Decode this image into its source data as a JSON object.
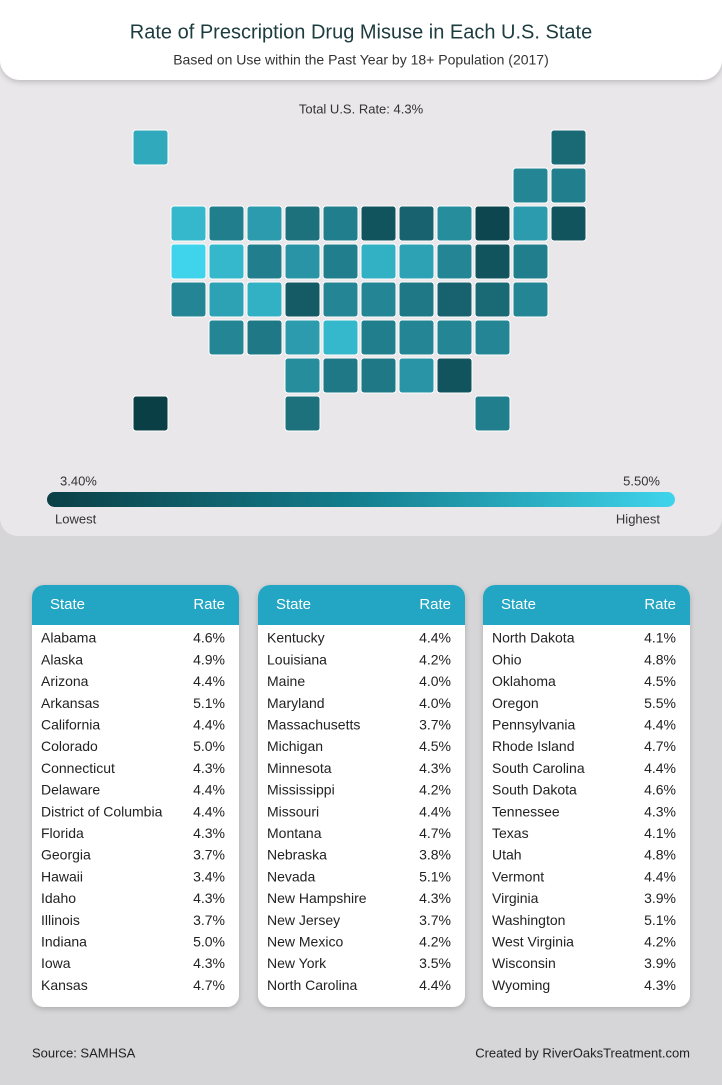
{
  "header": {
    "title": "Rate of Prescription Drug Misuse in Each U.S. State",
    "subtitle": "Based on Use within the Past Year by 18+ Population (2017)"
  },
  "map": {
    "total": "Total U.S. Rate: 4.3%",
    "legend": {
      "min": {
        "value": 3.4,
        "label": "3.40%"
      },
      "max": {
        "value": 5.5,
        "label": "5.50%"
      },
      "low_label": "Lowest",
      "high_label": "Highest"
    }
  },
  "tables": [
    {
      "headers": [
        "State",
        "Rate"
      ],
      "rows": [
        {
          "state": "Alabama",
          "rate": {
            "value": 4.6,
            "label": "4.6%"
          }
        },
        {
          "state": "Alaska",
          "rate": {
            "value": 4.9,
            "label": "4.9%"
          }
        },
        {
          "state": "Arizona",
          "rate": {
            "value": 4.4,
            "label": "4.4%"
          }
        },
        {
          "state": "Arkansas",
          "rate": {
            "value": 5.1,
            "label": "5.1%"
          }
        },
        {
          "state": "California",
          "rate": {
            "value": 4.4,
            "label": "4.4%"
          }
        },
        {
          "state": "Colorado",
          "rate": {
            "value": 5.0,
            "label": "5.0%"
          }
        },
        {
          "state": "Connecticut",
          "rate": {
            "value": 4.3,
            "label": "4.3%"
          }
        },
        {
          "state": "Delaware",
          "rate": {
            "value": 4.4,
            "label": "4.4%"
          }
        },
        {
          "state": "District of Columbia",
          "rate": {
            "value": 4.4,
            "label": "4.4%"
          }
        },
        {
          "state": "Florida",
          "rate": {
            "value": 4.3,
            "label": "4.3%"
          }
        },
        {
          "state": "Georgia",
          "rate": {
            "value": 3.7,
            "label": "3.7%"
          }
        },
        {
          "state": "Hawaii",
          "rate": {
            "value": 3.4,
            "label": "3.4%"
          }
        },
        {
          "state": "Idaho",
          "rate": {
            "value": 4.3,
            "label": "4.3%"
          }
        },
        {
          "state": "Illinois",
          "rate": {
            "value": 3.7,
            "label": "3.7%"
          }
        },
        {
          "state": "Indiana",
          "rate": {
            "value": 5.0,
            "label": "5.0%"
          }
        },
        {
          "state": "Iowa",
          "rate": {
            "value": 4.3,
            "label": "4.3%"
          }
        },
        {
          "state": "Kansas",
          "rate": {
            "value": 4.7,
            "label": "4.7%"
          }
        }
      ]
    },
    {
      "headers": [
        "State",
        "Rate"
      ],
      "rows": [
        {
          "state": "Kentucky",
          "rate": {
            "value": 4.4,
            "label": "4.4%"
          }
        },
        {
          "state": "Louisiana",
          "rate": {
            "value": 4.2,
            "label": "4.2%"
          }
        },
        {
          "state": "Maine",
          "rate": {
            "value": 4.0,
            "label": "4.0%"
          }
        },
        {
          "state": "Maryland",
          "rate": {
            "value": 4.0,
            "label": "4.0%"
          }
        },
        {
          "state": "Massachusetts",
          "rate": {
            "value": 3.7,
            "label": "3.7%"
          }
        },
        {
          "state": "Michigan",
          "rate": {
            "value": 4.5,
            "label": "4.5%"
          }
        },
        {
          "state": "Minnesota",
          "rate": {
            "value": 4.3,
            "label": "4.3%"
          }
        },
        {
          "state": "Mississippi",
          "rate": {
            "value": 4.2,
            "label": "4.2%"
          }
        },
        {
          "state": "Missouri",
          "rate": {
            "value": 4.4,
            "label": "4.4%"
          }
        },
        {
          "state": "Montana",
          "rate": {
            "value": 4.7,
            "label": "4.7%"
          }
        },
        {
          "state": "Nebraska",
          "rate": {
            "value": 3.8,
            "label": "3.8%"
          }
        },
        {
          "state": "Nevada",
          "rate": {
            "value": 5.1,
            "label": "5.1%"
          }
        },
        {
          "state": "New Hampshire",
          "rate": {
            "value": 4.3,
            "label": "4.3%"
          }
        },
        {
          "state": "New Jersey",
          "rate": {
            "value": 3.7,
            "label": "3.7%"
          }
        },
        {
          "state": "New Mexico",
          "rate": {
            "value": 4.2,
            "label": "4.2%"
          }
        },
        {
          "state": "New York",
          "rate": {
            "value": 3.5,
            "label": "3.5%"
          }
        },
        {
          "state": "North Carolina",
          "rate": {
            "value": 4.4,
            "label": "4.4%"
          }
        }
      ]
    },
    {
      "headers": [
        "State",
        "Rate"
      ],
      "rows": [
        {
          "state": "North Dakota",
          "rate": {
            "value": 4.1,
            "label": "4.1%"
          }
        },
        {
          "state": "Ohio",
          "rate": {
            "value": 4.8,
            "label": "4.8%"
          }
        },
        {
          "state": "Oklahoma",
          "rate": {
            "value": 4.5,
            "label": "4.5%"
          }
        },
        {
          "state": "Oregon",
          "rate": {
            "value": 5.5,
            "label": "5.5%"
          }
        },
        {
          "state": "Pennsylvania",
          "rate": {
            "value": 4.4,
            "label": "4.4%"
          }
        },
        {
          "state": "Rhode Island",
          "rate": {
            "value": 4.7,
            "label": "4.7%"
          }
        },
        {
          "state": "South Carolina",
          "rate": {
            "value": 4.4,
            "label": "4.4%"
          }
        },
        {
          "state": "South Dakota",
          "rate": {
            "value": 4.6,
            "label": "4.6%"
          }
        },
        {
          "state": "Tennessee",
          "rate": {
            "value": 4.3,
            "label": "4.3%"
          }
        },
        {
          "state": "Texas",
          "rate": {
            "value": 4.1,
            "label": "4.1%"
          }
        },
        {
          "state": "Utah",
          "rate": {
            "value": 4.8,
            "label": "4.8%"
          }
        },
        {
          "state": "Vermont",
          "rate": {
            "value": 4.4,
            "label": "4.4%"
          }
        },
        {
          "state": "Virginia",
          "rate": {
            "value": 3.9,
            "label": "3.9%"
          }
        },
        {
          "state": "Washington",
          "rate": {
            "value": 5.1,
            "label": "5.1%"
          }
        },
        {
          "state": "West Virginia",
          "rate": {
            "value": 4.2,
            "label": "4.2%"
          }
        },
        {
          "state": "Wisconsin",
          "rate": {
            "value": 3.9,
            "label": "3.9%"
          }
        },
        {
          "state": "Wyoming",
          "rate": {
            "value": 4.3,
            "label": "4.3%"
          }
        }
      ]
    }
  ],
  "footer": {
    "source": "Source: SAMHSA",
    "credit": "Created by RiverOaksTreatment.com"
  }
}
